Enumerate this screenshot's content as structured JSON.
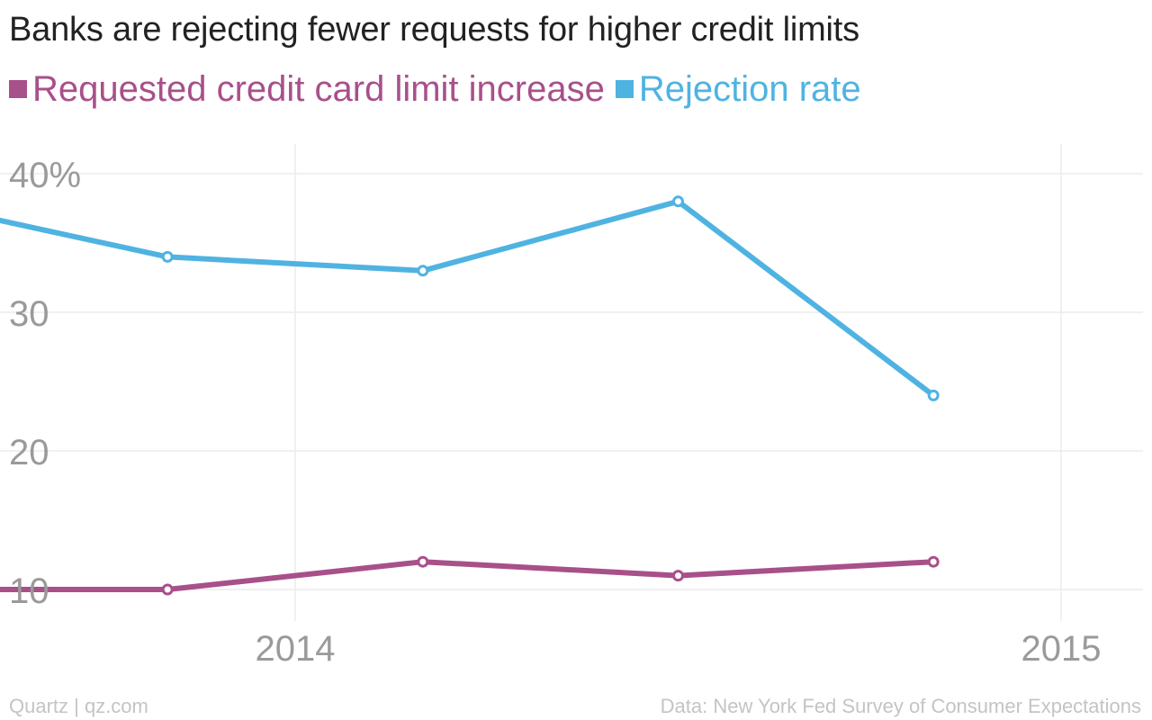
{
  "chart_data": {
    "type": "line",
    "title": "Banks are rejecting fewer requests for higher credit limits",
    "x": [
      "2013-07",
      "2013-11",
      "2014-03",
      "2014-07",
      "2014-11"
    ],
    "series": [
      {
        "name": "Requested credit card limit increase",
        "values": [
          10,
          10,
          12,
          11,
          12
        ],
        "color": "#a8508a"
      },
      {
        "name": "Rejection rate",
        "values": [
          38,
          34,
          33,
          38,
          24
        ],
        "color": "#4fb3e2"
      }
    ],
    "yticks": [
      {
        "value": 10,
        "label": "10"
      },
      {
        "value": 20,
        "label": "20"
      },
      {
        "value": 30,
        "label": "30"
      },
      {
        "value": 40,
        "label": "40%"
      }
    ],
    "xticks": [
      {
        "value": "2014",
        "label": "2014"
      },
      {
        "value": "2015",
        "label": "2015"
      }
    ],
    "ylim": [
      10,
      40
    ],
    "grid": true,
    "legend": "top-left",
    "xlabel": "",
    "ylabel": ""
  },
  "footer": {
    "source_left": "Quartz | qz.com",
    "source_right": "Data: New York Fed Survey of Consumer Expectations"
  },
  "colors": {
    "title": "#222222",
    "tick_label": "#9a9a9a",
    "grid": "#ececec",
    "footer": "#c4c4c4"
  }
}
